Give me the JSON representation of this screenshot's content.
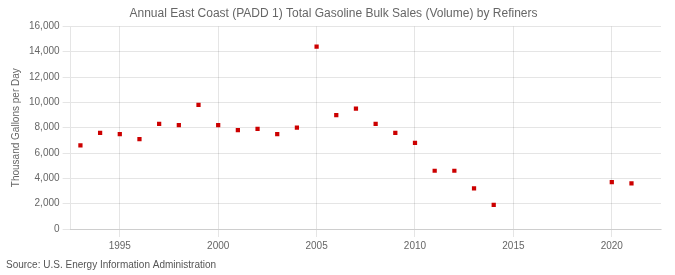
{
  "chart_data": {
    "type": "scatter",
    "title": "Annual East Coast (PADD 1) Total Gasoline Bulk Sales (Volume) by Refiners",
    "ylabel": "Thousand Gallons per Day",
    "annotation": "Source: U.S. Energy Information Administration",
    "x": [
      1993,
      1994,
      1995,
      1996,
      1997,
      1998,
      1999,
      2000,
      2001,
      2002,
      2003,
      2004,
      2005,
      2006,
      2007,
      2008,
      2009,
      2010,
      2011,
      2012,
      2013,
      2014,
      2020,
      2021
    ],
    "values": [
      6600,
      7600,
      7500,
      7100,
      8300,
      8200,
      9800,
      8200,
      7800,
      7900,
      7500,
      8000,
      14400,
      9000,
      9500,
      8300,
      7600,
      6800,
      4600,
      4600,
      3200,
      1900,
      3700,
      3600
    ],
    "color": "#cc0000",
    "marker": "square",
    "xlim": [
      1992.5,
      2022.5
    ],
    "xticks": [
      1995,
      2000,
      2005,
      2010,
      2015,
      2020
    ],
    "ylim": [
      0,
      16000
    ],
    "yticks": [
      0,
      {
        "value": 2000,
        "label": "2,000"
      },
      {
        "value": 4000,
        "label": "4,000"
      },
      {
        "value": 6000,
        "label": "6,000"
      },
      {
        "value": 8000,
        "label": "8,000"
      },
      {
        "value": 10000,
        "label": "10,000"
      },
      {
        "value": 12000,
        "label": "12,000"
      },
      {
        "value": 14000,
        "label": "14,000"
      },
      {
        "value": 16000,
        "label": "16,000"
      }
    ],
    "grid": true
  }
}
